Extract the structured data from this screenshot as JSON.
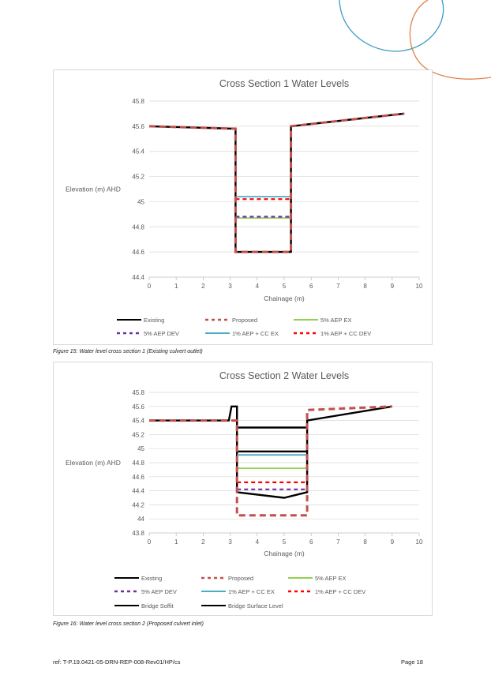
{
  "page": {
    "footer_ref": "ref: T-P.19.0421-05-DRN-REP-008-Rev01/HP/cs",
    "page_number": "Page 18",
    "colors": {
      "decor_blue": "#3a9bc4",
      "decor_orange": "#e0814a"
    }
  },
  "figures": [
    {
      "caption": "Figure 15: Water level cross section 1 (Existing culvert outlet)"
    },
    {
      "caption": "Figure 16: Water level cross section 2 (Proposed culvert inlet)"
    }
  ],
  "chart_data": [
    {
      "type": "line",
      "title": "Cross Section 1 Water Levels",
      "xlabel": "Chainage (m)",
      "ylabel": "Elevation (m) AHD",
      "xlim": [
        0,
        10
      ],
      "ylim": [
        44.4,
        45.8
      ],
      "xticks": [
        "0",
        "1",
        "2",
        "3",
        "4",
        "5",
        "6",
        "7",
        "8",
        "9",
        "10"
      ],
      "yticks": [
        "44.4",
        "44.6",
        "44.8",
        "45",
        "45.2",
        "45.4",
        "45.6",
        "45.8"
      ],
      "grid": "horizontal",
      "legend_position": "bottom",
      "series": [
        {
          "name": "Existing",
          "color": "#000000",
          "dash": "solid",
          "points": [
            [
              0,
              45.6
            ],
            [
              3.2,
              45.58
            ],
            [
              3.2,
              44.6
            ],
            [
              5.25,
              44.6
            ],
            [
              5.25,
              45.6
            ],
            [
              9.45,
              45.7
            ]
          ]
        },
        {
          "name": "Proposed",
          "color": "#c0504d",
          "dash": "dashed",
          "points": [
            [
              0,
              45.6
            ],
            [
              3.2,
              45.58
            ],
            [
              3.2,
              44.6
            ],
            [
              5.25,
              44.6
            ],
            [
              5.25,
              45.6
            ],
            [
              9.45,
              45.7
            ]
          ]
        },
        {
          "name": "5% AEP EX",
          "color": "#92d050",
          "dash": "solid",
          "points": [
            [
              3.2,
              44.87
            ],
            [
              5.25,
              44.87
            ]
          ]
        },
        {
          "name": "5% AEP DEV",
          "color": "#7030a0",
          "dash": "dashed",
          "points": [
            [
              3.2,
              44.88
            ],
            [
              5.25,
              44.88
            ]
          ]
        },
        {
          "name": "1% AEP + CC EX",
          "color": "#4bacc6",
          "dash": "solid",
          "points": [
            [
              3.2,
              45.04
            ],
            [
              5.25,
              45.04
            ]
          ]
        },
        {
          "name": "1% AEP + CC DEV",
          "color": "#ff0000",
          "dash": "dashed",
          "points": [
            [
              3.2,
              45.02
            ],
            [
              5.25,
              45.02
            ]
          ]
        }
      ]
    },
    {
      "type": "line",
      "title": "Cross Section 2 Water Levels",
      "xlabel": "Chainage (m)",
      "ylabel": "Elevation (m) AHD",
      "xlim": [
        0,
        10
      ],
      "ylim": [
        43.8,
        45.8
      ],
      "xticks": [
        "0",
        "1",
        "2",
        "3",
        "4",
        "5",
        "6",
        "7",
        "8",
        "9",
        "10"
      ],
      "yticks": [
        "43.8",
        "44",
        "44.2",
        "44.4",
        "44.6",
        "44.8",
        "45",
        "45.2",
        "45.4",
        "45.6",
        "45.8"
      ],
      "grid": "horizontal",
      "legend_position": "bottom",
      "series": [
        {
          "name": "Existing",
          "color": "#000000",
          "dash": "solid",
          "points": [
            [
              0,
              45.4
            ],
            [
              2.95,
              45.4
            ],
            [
              3.05,
              45.6
            ],
            [
              3.25,
              45.6
            ],
            [
              3.25,
              44.38
            ],
            [
              5.0,
              44.3
            ],
            [
              5.85,
              44.38
            ],
            [
              5.85,
              45.4
            ],
            [
              9.0,
              45.6
            ]
          ]
        },
        {
          "name": "Proposed",
          "color": "#c0504d",
          "dash": "dashed",
          "points": [
            [
              0,
              45.4
            ],
            [
              3.05,
              45.4
            ],
            [
              3.25,
              45.4
            ],
            [
              3.25,
              44.05
            ],
            [
              5.85,
              44.05
            ],
            [
              5.85,
              45.55
            ],
            [
              9.0,
              45.6
            ]
          ]
        },
        {
          "name": "5% AEP EX",
          "color": "#92d050",
          "dash": "solid",
          "points": [
            [
              3.25,
              44.72
            ],
            [
              5.85,
              44.72
            ]
          ]
        },
        {
          "name": "5% AEP DEV",
          "color": "#7030a0",
          "dash": "dashed",
          "points": [
            [
              3.25,
              44.42
            ],
            [
              5.85,
              44.42
            ]
          ]
        },
        {
          "name": "1% AEP + CC EX",
          "color": "#4bacc6",
          "dash": "solid",
          "points": [
            [
              3.25,
              44.91
            ],
            [
              5.85,
              44.91
            ]
          ]
        },
        {
          "name": "1% AEP + CC DEV",
          "color": "#ff0000",
          "dash": "dashed",
          "points": [
            [
              3.25,
              44.52
            ],
            [
              5.85,
              44.52
            ]
          ]
        },
        {
          "name": "Bridge Soffit",
          "color": "#000000",
          "dash": "solid",
          "points": [
            [
              3.25,
              44.96
            ],
            [
              5.85,
              44.96
            ]
          ]
        },
        {
          "name": "Bridge Surface Level",
          "color": "#000000",
          "dash": "solid",
          "points": [
            [
              3.25,
              45.3
            ],
            [
              5.85,
              45.3
            ]
          ]
        }
      ]
    }
  ]
}
